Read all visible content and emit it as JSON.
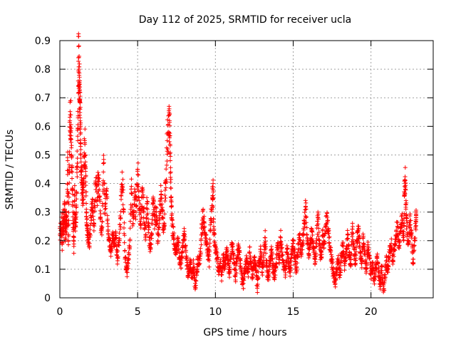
{
  "chart_data": {
    "type": "scatter",
    "title": "Day 112 of 2025, SRMTID for receiver ucla",
    "xlabel": "GPS time / hours",
    "ylabel": "SRMTID / TECUs",
    "xlim": [
      0,
      24
    ],
    "ylim": [
      0,
      0.9
    ],
    "x_ticks": [
      0,
      5,
      10,
      15,
      20
    ],
    "x_tick_labels": [
      "0",
      "5",
      "10",
      "15",
      "20"
    ],
    "y_ticks": [
      0,
      0.1,
      0.2,
      0.3,
      0.4,
      0.5,
      0.6,
      0.7,
      0.8,
      0.9
    ],
    "y_tick_labels": [
      "0",
      "0.1",
      "0.2",
      "0.3",
      "0.4",
      "0.5",
      "0.6",
      "0.7",
      "0.8",
      "0.9"
    ],
    "grid": true,
    "marker": "+",
    "color": "#ff0000",
    "series": [
      {
        "name": "SRMTID",
        "points": [
          [
            0.0,
            0.22
          ],
          [
            0.1,
            0.26
          ],
          [
            0.15,
            0.19
          ],
          [
            0.2,
            0.3
          ],
          [
            0.25,
            0.23
          ],
          [
            0.3,
            0.33
          ],
          [
            0.35,
            0.21
          ],
          [
            0.4,
            0.28
          ],
          [
            0.45,
            0.25
          ],
          [
            0.5,
            0.48
          ],
          [
            0.55,
            0.2
          ],
          [
            0.6,
            0.44
          ],
          [
            0.65,
            0.62
          ],
          [
            0.7,
            0.64
          ],
          [
            0.75,
            0.5
          ],
          [
            0.8,
            0.38
          ],
          [
            0.85,
            0.27
          ],
          [
            0.9,
            0.18
          ],
          [
            0.95,
            0.36
          ],
          [
            1.0,
            0.25
          ],
          [
            1.05,
            0.3
          ],
          [
            1.1,
            0.45
          ],
          [
            1.15,
            0.55
          ],
          [
            1.2,
            0.84
          ],
          [
            1.22,
            0.8
          ],
          [
            1.25,
            0.75
          ],
          [
            1.28,
            0.72
          ],
          [
            1.3,
            0.66
          ],
          [
            1.32,
            0.6
          ],
          [
            1.35,
            0.5
          ],
          [
            1.4,
            0.42
          ],
          [
            1.45,
            0.38
          ],
          [
            1.5,
            0.33
          ],
          [
            1.55,
            0.46
          ],
          [
            1.6,
            0.55
          ],
          [
            1.65,
            0.5
          ],
          [
            1.7,
            0.3
          ],
          [
            1.75,
            0.25
          ],
          [
            1.8,
            0.22
          ],
          [
            1.9,
            0.18
          ],
          [
            2.0,
            0.28
          ],
          [
            2.1,
            0.33
          ],
          [
            2.2,
            0.26
          ],
          [
            2.3,
            0.4
          ],
          [
            2.4,
            0.35
          ],
          [
            2.5,
            0.43
          ],
          [
            2.6,
            0.28
          ],
          [
            2.7,
            0.22
          ],
          [
            2.8,
            0.47
          ],
          [
            2.9,
            0.31
          ],
          [
            3.0,
            0.36
          ],
          [
            3.1,
            0.25
          ],
          [
            3.2,
            0.2
          ],
          [
            3.3,
            0.16
          ],
          [
            3.4,
            0.23
          ],
          [
            3.5,
            0.18
          ],
          [
            3.6,
            0.21
          ],
          [
            3.7,
            0.14
          ],
          [
            3.8,
            0.2
          ],
          [
            3.9,
            0.28
          ],
          [
            4.0,
            0.44
          ],
          [
            4.1,
            0.3
          ],
          [
            4.2,
            0.14
          ],
          [
            4.3,
            0.09
          ],
          [
            4.4,
            0.12
          ],
          [
            4.5,
            0.2
          ],
          [
            4.6,
            0.39
          ],
          [
            4.7,
            0.26
          ],
          [
            4.8,
            0.35
          ],
          [
            4.9,
            0.3
          ],
          [
            5.0,
            0.45
          ],
          [
            5.1,
            0.34
          ],
          [
            5.2,
            0.26
          ],
          [
            5.3,
            0.37
          ],
          [
            5.4,
            0.3
          ],
          [
            5.5,
            0.21
          ],
          [
            5.6,
            0.33
          ],
          [
            5.7,
            0.25
          ],
          [
            5.8,
            0.17
          ],
          [
            5.9,
            0.22
          ],
          [
            6.0,
            0.33
          ],
          [
            6.1,
            0.27
          ],
          [
            6.2,
            0.3
          ],
          [
            6.3,
            0.2
          ],
          [
            6.4,
            0.26
          ],
          [
            6.5,
            0.36
          ],
          [
            6.6,
            0.28
          ],
          [
            6.7,
            0.24
          ],
          [
            6.8,
            0.4
          ],
          [
            6.9,
            0.55
          ],
          [
            7.0,
            0.58
          ],
          [
            7.05,
            0.62
          ],
          [
            7.1,
            0.48
          ],
          [
            7.15,
            0.35
          ],
          [
            7.2,
            0.28
          ],
          [
            7.3,
            0.22
          ],
          [
            7.4,
            0.18
          ],
          [
            7.5,
            0.16
          ],
          [
            7.6,
            0.2
          ],
          [
            7.7,
            0.14
          ],
          [
            7.8,
            0.12
          ],
          [
            7.9,
            0.18
          ],
          [
            8.0,
            0.22
          ],
          [
            8.1,
            0.16
          ],
          [
            8.2,
            0.1
          ],
          [
            8.3,
            0.08
          ],
          [
            8.4,
            0.13
          ],
          [
            8.5,
            0.07
          ],
          [
            8.6,
            0.12
          ],
          [
            8.7,
            0.03
          ],
          [
            8.8,
            0.1
          ],
          [
            8.9,
            0.14
          ],
          [
            9.0,
            0.12
          ],
          [
            9.1,
            0.22
          ],
          [
            9.2,
            0.28
          ],
          [
            9.3,
            0.25
          ],
          [
            9.4,
            0.2
          ],
          [
            9.5,
            0.16
          ],
          [
            9.6,
            0.13
          ],
          [
            9.7,
            0.27
          ],
          [
            9.8,
            0.35
          ],
          [
            9.85,
            0.4
          ],
          [
            9.9,
            0.22
          ],
          [
            10.0,
            0.18
          ],
          [
            10.1,
            0.15
          ],
          [
            10.2,
            0.1
          ],
          [
            10.3,
            0.12
          ],
          [
            10.4,
            0.08
          ],
          [
            10.5,
            0.14
          ],
          [
            10.6,
            0.11
          ],
          [
            10.7,
            0.17
          ],
          [
            10.8,
            0.13
          ],
          [
            10.9,
            0.09
          ],
          [
            11.0,
            0.15
          ],
          [
            11.1,
            0.19
          ],
          [
            11.2,
            0.12
          ],
          [
            11.3,
            0.08
          ],
          [
            11.4,
            0.14
          ],
          [
            11.5,
            0.18
          ],
          [
            11.6,
            0.12
          ],
          [
            11.7,
            0.07
          ],
          [
            11.8,
            0.05
          ],
          [
            11.9,
            0.1
          ],
          [
            12.0,
            0.13
          ],
          [
            12.1,
            0.09
          ],
          [
            12.2,
            0.16
          ],
          [
            12.3,
            0.11
          ],
          [
            12.4,
            0.08
          ],
          [
            12.5,
            0.13
          ],
          [
            12.6,
            0.1
          ],
          [
            12.7,
            0.04
          ],
          [
            12.8,
            0.12
          ],
          [
            12.9,
            0.17
          ],
          [
            13.0,
            0.09
          ],
          [
            13.1,
            0.14
          ],
          [
            13.2,
            0.21
          ],
          [
            13.3,
            0.11
          ],
          [
            13.4,
            0.07
          ],
          [
            13.5,
            0.13
          ],
          [
            13.6,
            0.16
          ],
          [
            13.7,
            0.1
          ],
          [
            13.8,
            0.08
          ],
          [
            13.9,
            0.12
          ],
          [
            14.0,
            0.19
          ],
          [
            14.1,
            0.14
          ],
          [
            14.2,
            0.21
          ],
          [
            14.3,
            0.15
          ],
          [
            14.4,
            0.11
          ],
          [
            14.5,
            0.08
          ],
          [
            14.6,
            0.17
          ],
          [
            14.7,
            0.12
          ],
          [
            14.8,
            0.1
          ],
          [
            14.9,
            0.15
          ],
          [
            15.0,
            0.2
          ],
          [
            15.1,
            0.14
          ],
          [
            15.2,
            0.1
          ],
          [
            15.3,
            0.16
          ],
          [
            15.4,
            0.22
          ],
          [
            15.5,
            0.15
          ],
          [
            15.6,
            0.19
          ],
          [
            15.7,
            0.26
          ],
          [
            15.8,
            0.32
          ],
          [
            15.9,
            0.21
          ],
          [
            16.0,
            0.15
          ],
          [
            16.1,
            0.19
          ],
          [
            16.2,
            0.24
          ],
          [
            16.3,
            0.17
          ],
          [
            16.4,
            0.12
          ],
          [
            16.5,
            0.2
          ],
          [
            16.6,
            0.28
          ],
          [
            16.7,
            0.17
          ],
          [
            16.8,
            0.14
          ],
          [
            16.9,
            0.22
          ],
          [
            17.0,
            0.19
          ],
          [
            17.1,
            0.25
          ],
          [
            17.2,
            0.27
          ],
          [
            17.3,
            0.21
          ],
          [
            17.4,
            0.16
          ],
          [
            17.5,
            0.12
          ],
          [
            17.6,
            0.08
          ],
          [
            17.7,
            0.05
          ],
          [
            17.8,
            0.1
          ],
          [
            17.9,
            0.13
          ],
          [
            18.0,
            0.08
          ],
          [
            18.1,
            0.14
          ],
          [
            18.2,
            0.18
          ],
          [
            18.3,
            0.12
          ],
          [
            18.4,
            0.16
          ],
          [
            18.5,
            0.22
          ],
          [
            18.6,
            0.15
          ],
          [
            18.7,
            0.11
          ],
          [
            18.8,
            0.24
          ],
          [
            18.9,
            0.17
          ],
          [
            19.0,
            0.13
          ],
          [
            19.1,
            0.2
          ],
          [
            19.2,
            0.25
          ],
          [
            19.3,
            0.16
          ],
          [
            19.4,
            0.12
          ],
          [
            19.5,
            0.21
          ],
          [
            19.6,
            0.15
          ],
          [
            19.7,
            0.1
          ],
          [
            19.8,
            0.18
          ],
          [
            19.9,
            0.14
          ],
          [
            20.0,
            0.08
          ],
          [
            20.1,
            0.12
          ],
          [
            20.2,
            0.06
          ],
          [
            20.3,
            0.1
          ],
          [
            20.4,
            0.14
          ],
          [
            20.5,
            0.09
          ],
          [
            20.6,
            0.05
          ],
          [
            20.7,
            0.11
          ],
          [
            20.8,
            0.02
          ],
          [
            20.9,
            0.08
          ],
          [
            21.0,
            0.13
          ],
          [
            21.1,
            0.1
          ],
          [
            21.2,
            0.16
          ],
          [
            21.3,
            0.19
          ],
          [
            21.4,
            0.13
          ],
          [
            21.5,
            0.17
          ],
          [
            21.6,
            0.22
          ],
          [
            21.7,
            0.25
          ],
          [
            21.8,
            0.18
          ],
          [
            21.9,
            0.23
          ],
          [
            22.0,
            0.27
          ],
          [
            22.1,
            0.2
          ],
          [
            22.15,
            0.36
          ],
          [
            22.2,
            0.41
          ],
          [
            22.25,
            0.34
          ],
          [
            22.3,
            0.25
          ],
          [
            22.4,
            0.19
          ],
          [
            22.5,
            0.27
          ],
          [
            22.6,
            0.22
          ],
          [
            22.7,
            0.12
          ],
          [
            22.8,
            0.2
          ],
          [
            22.9,
            0.28
          ]
        ]
      }
    ]
  }
}
